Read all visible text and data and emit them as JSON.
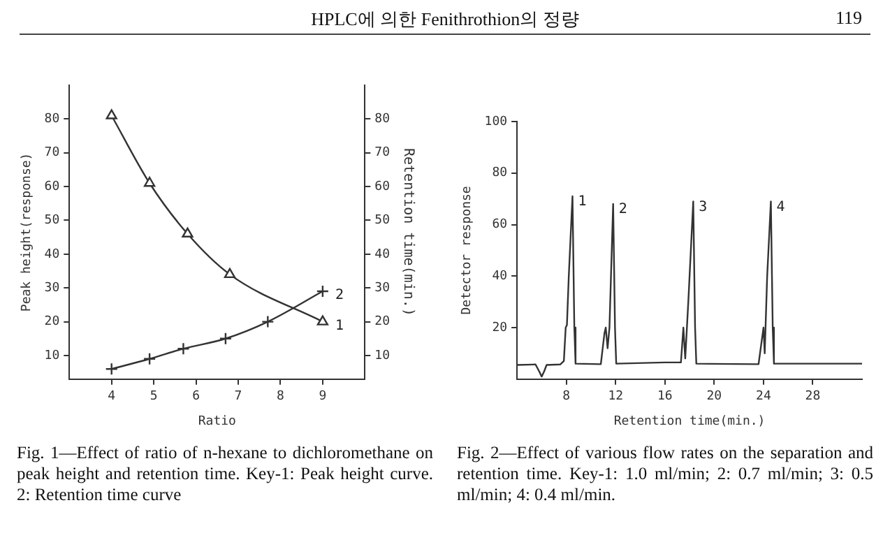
{
  "chart_data": [
    {
      "type": "line",
      "xlabel": "Ratio",
      "ylabel": "Peak height(response)",
      "y2label": "Retention time(min.)",
      "xlim": [
        3,
        10
      ],
      "xticks": [
        4,
        5,
        6,
        7,
        8,
        9
      ],
      "ylim": [
        3,
        90
      ],
      "yticks": [
        10,
        20,
        30,
        40,
        50,
        60,
        70,
        80
      ],
      "y2lim": [
        3,
        90
      ],
      "y2ticks": [
        10,
        20,
        30,
        40,
        50,
        60,
        70,
        80
      ],
      "legend": false,
      "annotations": [
        "HPLC에 의한 Fenithrothion의 정량",
        "119",
        "Fig. 1—Effect of ratio of n-hexane to dichloromethane on peak height and retention time. Key-1: Peak height curve. 2: Retention time curve"
      ],
      "series": [
        {
          "name": "1",
          "color": "#333333",
          "marker": "triangle",
          "x": [
            4,
            4.9,
            5.8,
            6.8,
            9
          ],
          "values": [
            81,
            61,
            46,
            34,
            20
          ]
        },
        {
          "name": "2",
          "color": "#333333",
          "marker": "cross",
          "axis": "y2",
          "x": [
            4,
            4.9,
            5.7,
            6.7,
            7.7,
            9
          ],
          "values": [
            6,
            9,
            12,
            15,
            20,
            29
          ]
        }
      ]
    },
    {
      "type": "line",
      "xlabel": "Retention time(min.)",
      "ylabel": "Detector response",
      "xlim": [
        4,
        32
      ],
      "xticks": [
        8,
        12,
        16,
        20,
        24,
        28
      ],
      "ylim": [
        0,
        100
      ],
      "yticks": [
        20,
        40,
        60,
        80,
        100
      ],
      "legend": false,
      "marker": "none",
      "annotations": [
        "Fig. 2—Effect of various flow rates on the separation and retention time. Key-1: 1.0 ml/min; 2: 0.7 ml/min; 3: 0.5 ml/min; 4: 0.4 ml/min.",
        {
          "text": "1",
          "x": 8.5,
          "y": 71
        },
        {
          "text": "2",
          "x": 11.8,
          "y": 68
        },
        {
          "text": "3",
          "x": 18.3,
          "y": 69
        },
        {
          "text": "4",
          "x": 24.6,
          "y": 69
        }
      ],
      "series": [
        {
          "color": "#333333",
          "x": [
            4,
            5.5,
            5.8,
            6.0,
            6.2,
            6.4,
            7.5,
            7.8,
            7.95,
            8.05,
            8.2,
            8.5,
            8.65,
            8.75,
            10.8,
            11.1,
            11.2,
            11.35,
            11.5,
            11.8,
            11.95,
            12.05,
            16,
            17.3,
            17.5,
            17.65,
            17.9,
            18.3,
            18.45,
            18.55,
            23.6,
            24.0,
            24.1,
            24.3,
            24.6,
            24.75,
            24.85,
            30,
            32
          ],
          "values": [
            5.5,
            5.7,
            3,
            1,
            3,
            5.5,
            5.7,
            7,
            20,
            21,
            40,
            71,
            20,
            6,
            5.8,
            18,
            20,
            12,
            20,
            68,
            20,
            6,
            6.5,
            6.5,
            20,
            8,
            30,
            69,
            20,
            6,
            5.8,
            20,
            10,
            40,
            69,
            20,
            6,
            6,
            6
          ]
        }
      ]
    }
  ]
}
